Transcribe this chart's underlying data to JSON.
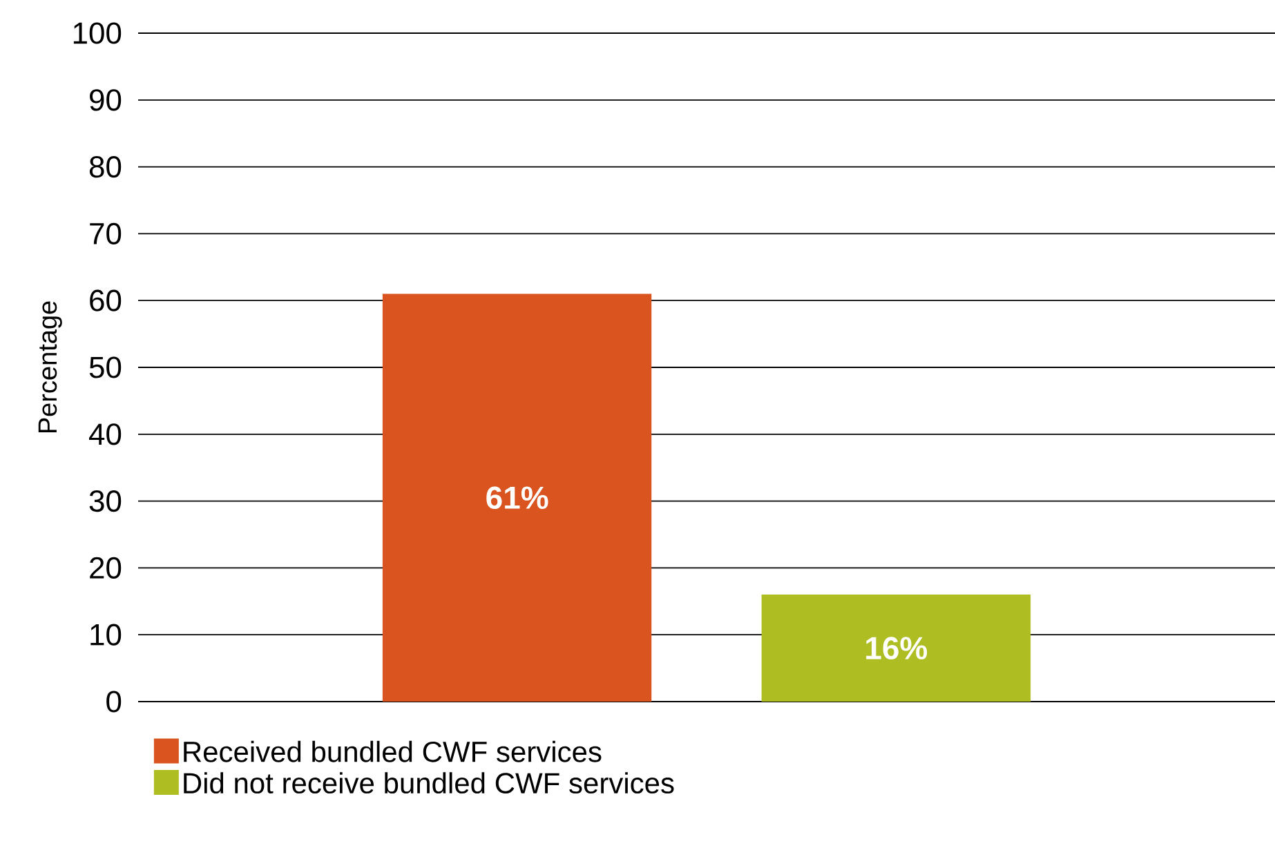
{
  "chart_data": {
    "type": "bar",
    "ylabel": "Percentage",
    "categories": [
      null,
      null
    ],
    "series": [
      {
        "name": "Received bundled CWF services",
        "color": "#d9541e",
        "values": [
          61,
          null
        ],
        "value_labels": [
          "61%",
          null
        ]
      },
      {
        "name": "Did not receive bundled CWF services",
        "color": "#adbd22",
        "values": [
          null,
          16
        ],
        "value_labels": [
          null,
          "16%"
        ]
      }
    ],
    "ylim": [
      0,
      100
    ],
    "yticks": [
      0,
      10,
      20,
      30,
      40,
      50,
      60,
      70,
      80,
      90,
      100
    ],
    "grid": "y",
    "legend": "bottom"
  }
}
